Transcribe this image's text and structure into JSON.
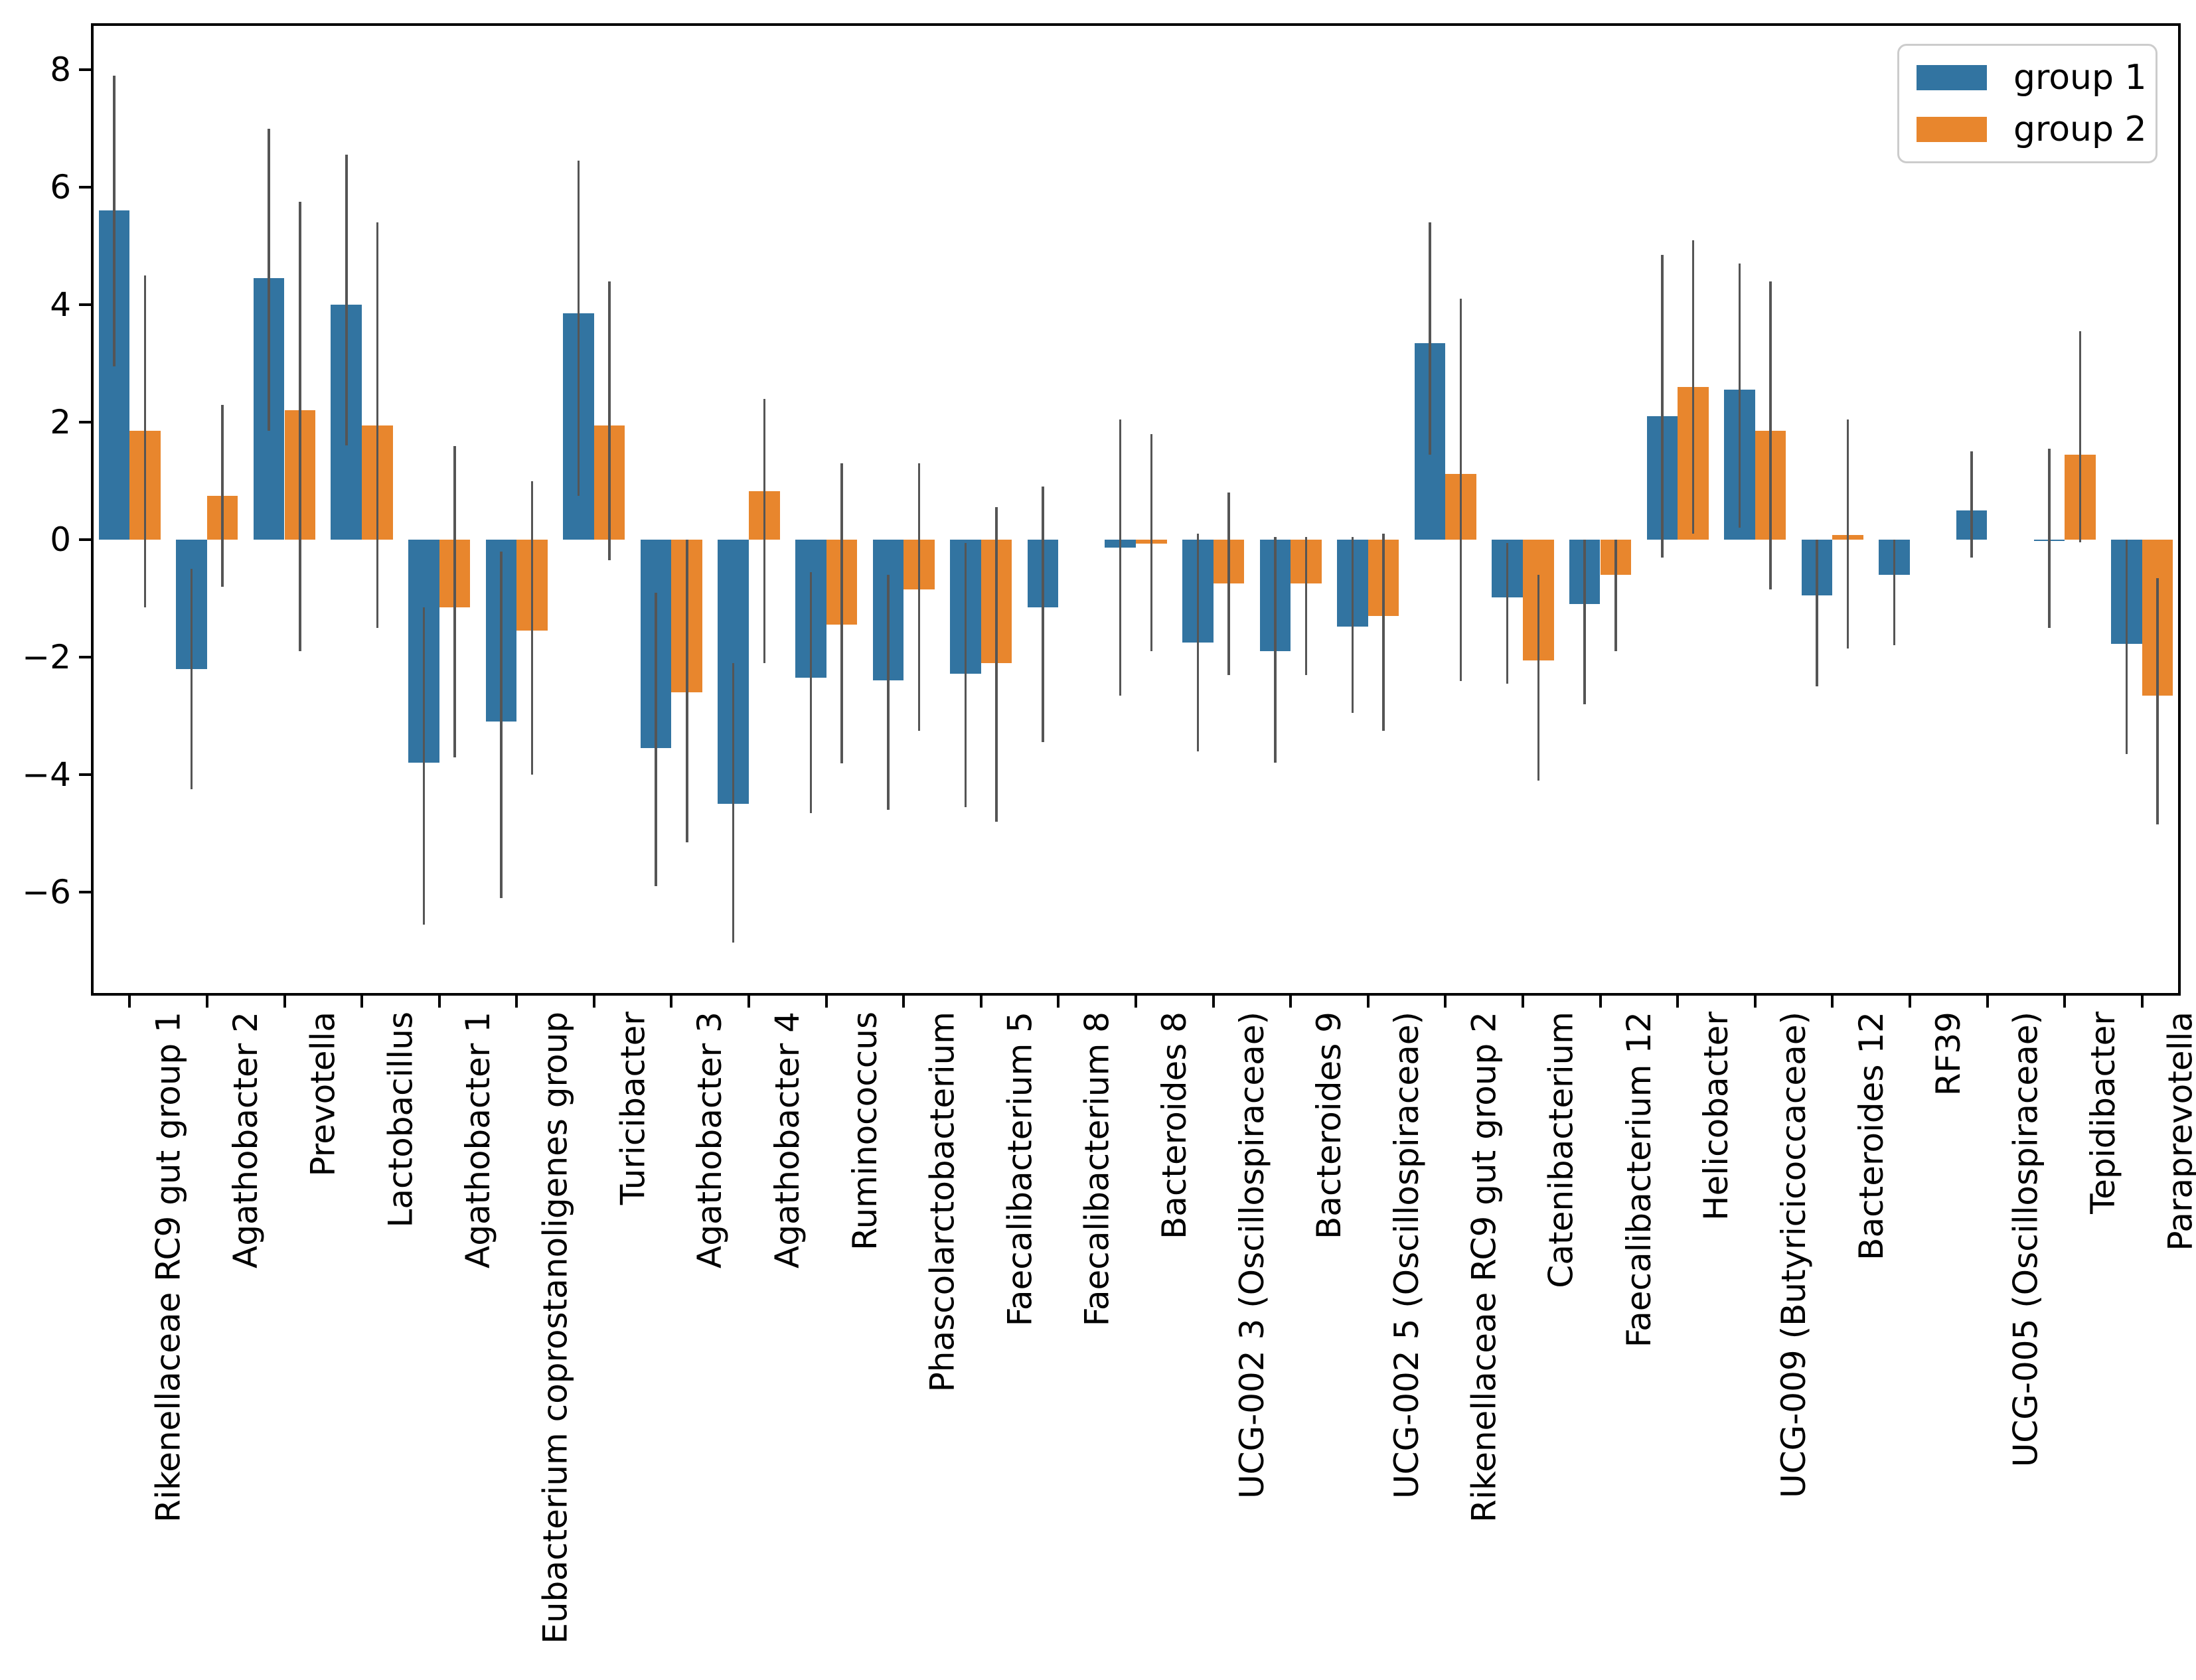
{
  "chart_data": {
    "type": "bar",
    "title": "",
    "xlabel": "",
    "ylabel": "",
    "grid": false,
    "legend_position": "upper right",
    "ylim": [
      -7.76,
      8.79
    ],
    "yticks": [
      8,
      6,
      4,
      2,
      0,
      -2,
      -4,
      -6
    ],
    "error_bar_color": "#555555",
    "categories": [
      "Rikenellaceae RC9 gut group 1",
      "Agathobacter 2",
      "Prevotella",
      "Lactobacillus",
      "Agathobacter 1",
      "Eubacterium coprostanoligenes group",
      "Turicibacter",
      "Agathobacter 3",
      "Agathobacter 4",
      "Ruminococcus",
      "Phascolarctobacterium",
      "Faecalibacterium 5",
      "Faecalibacterium 8",
      "Bacteroides 8",
      "UCG-002 3 (Oscillospiraceae)",
      "Bacteroides 9",
      "UCG-002 5 (Oscillospiraceae)",
      "Rikenellaceae RC9 gut group 2",
      "Catenibacterium",
      "Faecalibacterium 12",
      "Helicobacter",
      "UCG-009 (Butyricicoccaceae)",
      "Bacteroides 12",
      "RF39",
      "UCG-005 (Oscillospiraceae)",
      "Tepidibacter",
      "Paraprevotella"
    ],
    "series": [
      {
        "name": "group 1",
        "color": "#3274a1",
        "values": [
          5.6,
          -2.2,
          4.45,
          4.0,
          -3.8,
          -3.1,
          3.85,
          -3.55,
          -4.5,
          -2.35,
          -2.4,
          -2.28,
          -1.15,
          -0.13,
          -1.75,
          -1.9,
          -1.48,
          3.35,
          -0.98,
          -1.1,
          2.1,
          2.55,
          -0.95,
          -0.6,
          0.5,
          0.0,
          -1.77
        ],
        "err_low": [
          2.95,
          -4.25,
          1.85,
          1.6,
          -6.55,
          -6.1,
          0.75,
          -5.9,
          -6.85,
          -4.65,
          -4.6,
          -4.55,
          -3.45,
          -2.65,
          -3.6,
          -3.8,
          -2.95,
          1.45,
          -2.45,
          -2.8,
          -0.3,
          0.2,
          -2.5,
          -1.8,
          -0.3,
          -1.5,
          -3.65
        ],
        "err_high": [
          7.9,
          -0.5,
          7.0,
          6.55,
          -1.15,
          -0.2,
          6.45,
          -0.9,
          -2.1,
          -0.55,
          -0.6,
          -0.05,
          0.9,
          2.05,
          0.1,
          0.05,
          0.05,
          5.4,
          -0.05,
          0.0,
          4.85,
          4.7,
          0.0,
          0.0,
          1.5,
          1.55,
          0.0
        ]
      },
      {
        "name": "group 2",
        "color": "#e8862d",
        "values": [
          1.85,
          0.75,
          2.2,
          1.95,
          -1.15,
          -1.55,
          1.95,
          -2.6,
          0.83,
          -1.45,
          -0.85,
          -2.1,
          null,
          -0.07,
          -0.75,
          -0.75,
          -1.3,
          1.12,
          -2.05,
          -0.6,
          2.6,
          1.85,
          0.08,
          null,
          null,
          1.45,
          -2.65
        ],
        "err_low": [
          -1.15,
          -0.8,
          -1.9,
          -1.5,
          -3.7,
          -4.0,
          -0.35,
          -5.15,
          -2.1,
          -3.8,
          -3.25,
          -4.8,
          null,
          -1.9,
          -2.3,
          -2.3,
          -3.25,
          -2.4,
          -4.1,
          -1.9,
          0.1,
          -0.85,
          -1.85,
          null,
          null,
          -0.05,
          -4.85
        ],
        "err_high": [
          4.5,
          2.3,
          5.75,
          5.4,
          1.6,
          1.0,
          4.4,
          0.0,
          2.4,
          1.3,
          1.3,
          0.55,
          null,
          1.8,
          0.8,
          0.05,
          0.1,
          4.1,
          -0.6,
          0.0,
          5.1,
          4.4,
          2.05,
          null,
          null,
          3.55,
          -0.65
        ]
      }
    ]
  },
  "legend": {
    "items": [
      {
        "label": "group 1",
        "color": "#3274a1"
      },
      {
        "label": "group 2",
        "color": "#e8862d"
      }
    ]
  }
}
